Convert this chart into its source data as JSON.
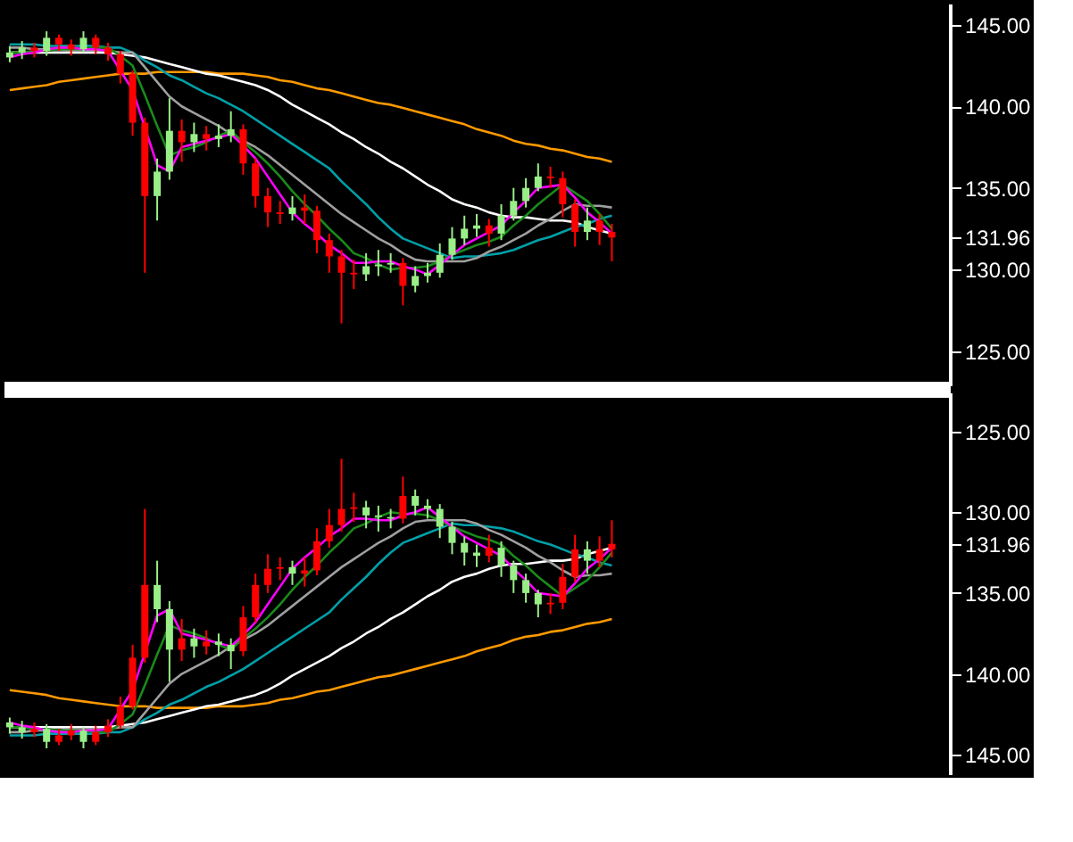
{
  "chart_data": [
    {
      "type": "candlestick",
      "categories": [
        null,
        null,
        null,
        null,
        null,
        null,
        null,
        null,
        null,
        null,
        null,
        null,
        null,
        null,
        null,
        null,
        null,
        null,
        null,
        null,
        null,
        null,
        null,
        null,
        null,
        null,
        null,
        null,
        null,
        null,
        null,
        null,
        null,
        null,
        null,
        null,
        null,
        null,
        null,
        null,
        null,
        null,
        null,
        null,
        null,
        null,
        null,
        null,
        null,
        null
      ],
      "ohlc": [
        [
          143.0,
          143.7,
          142.7,
          143.3
        ],
        [
          143.3,
          144.0,
          142.9,
          143.6
        ],
        [
          143.6,
          143.9,
          143.0,
          143.4
        ],
        [
          143.4,
          144.6,
          143.1,
          144.2
        ],
        [
          144.2,
          144.4,
          143.4,
          143.8
        ],
        [
          143.8,
          144.1,
          143.1,
          143.5
        ],
        [
          143.5,
          144.6,
          143.3,
          144.2
        ],
        [
          144.2,
          144.4,
          143.2,
          143.6
        ],
        [
          143.6,
          143.9,
          142.8,
          143.2
        ],
        [
          143.2,
          143.4,
          141.4,
          142.0
        ],
        [
          142.0,
          142.2,
          138.2,
          139.0
        ],
        [
          139.0,
          139.3,
          129.8,
          134.5
        ],
        [
          134.5,
          136.8,
          133.0,
          136.0
        ],
        [
          136.0,
          140.5,
          135.5,
          138.5
        ],
        [
          138.5,
          139.2,
          136.6,
          137.8
        ],
        [
          137.8,
          139.0,
          137.2,
          138.3
        ],
        [
          138.3,
          138.8,
          137.3,
          138.0
        ],
        [
          138.0,
          138.9,
          137.5,
          138.2
        ],
        [
          138.2,
          139.7,
          137.8,
          138.6
        ],
        [
          138.6,
          138.9,
          135.8,
          136.5
        ],
        [
          136.5,
          136.8,
          133.8,
          134.5
        ],
        [
          134.5,
          135.0,
          132.6,
          133.5
        ],
        [
          133.5,
          134.2,
          132.8,
          133.4
        ],
        [
          133.4,
          134.5,
          133.0,
          133.8
        ],
        [
          133.8,
          134.6,
          132.8,
          133.6
        ],
        [
          133.6,
          133.9,
          131.0,
          131.8
        ],
        [
          131.8,
          132.2,
          129.8,
          130.8
        ],
        [
          130.8,
          131.2,
          126.7,
          129.8
        ],
        [
          129.8,
          130.6,
          128.8,
          129.7
        ],
        [
          129.7,
          131.0,
          129.3,
          130.2
        ],
        [
          130.2,
          131.2,
          129.6,
          130.3
        ],
        [
          130.3,
          131.0,
          129.8,
          130.4
        ],
        [
          130.4,
          130.7,
          127.8,
          129.0
        ],
        [
          129.0,
          130.2,
          128.6,
          129.6
        ],
        [
          129.6,
          130.4,
          129.2,
          129.8
        ],
        [
          129.8,
          131.6,
          129.5,
          130.9
        ],
        [
          130.9,
          132.6,
          130.6,
          131.9
        ],
        [
          131.9,
          133.3,
          131.5,
          132.5
        ],
        [
          132.5,
          133.4,
          132.0,
          132.7
        ],
        [
          132.7,
          133.1,
          131.4,
          132.2
        ],
        [
          132.2,
          134.0,
          131.8,
          133.3
        ],
        [
          133.3,
          135.0,
          133.0,
          134.2
        ],
        [
          134.2,
          135.6,
          133.8,
          135.0
        ],
        [
          135.0,
          136.5,
          134.8,
          135.7
        ],
        [
          135.7,
          136.3,
          135.0,
          135.6
        ],
        [
          135.6,
          136.0,
          133.2,
          134.0
        ],
        [
          134.0,
          134.3,
          131.4,
          132.3
        ],
        [
          132.3,
          133.8,
          131.8,
          133.0
        ],
        [
          133.0,
          133.4,
          131.5,
          132.3
        ],
        [
          132.3,
          132.8,
          130.5,
          131.96
        ]
      ],
      "colors": [
        "#99ee88",
        "#99ee88",
        "#ff0000",
        "#99ee88",
        "#ff0000",
        "#ff0000",
        "#99ee88",
        "#ff0000",
        "#ff0000",
        "#ff0000",
        "#ff0000",
        "#ff0000",
        "#99ee88",
        "#99ee88",
        "#ff0000",
        "#99ee88",
        "#ff0000",
        "#99ee88",
        "#99ee88",
        "#ff0000",
        "#ff0000",
        "#ff0000",
        "#ff0000",
        "#99ee88",
        "#ff0000",
        "#ff0000",
        "#ff0000",
        "#ff0000",
        "#ff0000",
        "#99ee88",
        "#99ee88",
        "#99ee88",
        "#ff0000",
        "#99ee88",
        "#99ee88",
        "#99ee88",
        "#99ee88",
        "#99ee88",
        "#99ee88",
        "#ff0000",
        "#99ee88",
        "#99ee88",
        "#99ee88",
        "#99ee88",
        "#ff0000",
        "#ff0000",
        "#ff0000",
        "#99ee88",
        "#ff0000",
        "#ff0000"
      ],
      "series": [
        {
          "type": "line",
          "color": "#ff9900",
          "values": [
            141.0,
            141.1,
            141.2,
            141.3,
            141.5,
            141.6,
            141.7,
            141.8,
            141.9,
            142.0,
            142.0,
            142.0,
            142.1,
            142.1,
            142.1,
            142.1,
            142.1,
            142.0,
            142.0,
            142.0,
            141.9,
            141.8,
            141.6,
            141.5,
            141.3,
            141.1,
            141.0,
            140.8,
            140.6,
            140.4,
            140.2,
            140.1,
            139.9,
            139.7,
            139.5,
            139.3,
            139.1,
            138.9,
            138.6,
            138.4,
            138.2,
            137.9,
            137.7,
            137.6,
            137.4,
            137.3,
            137.1,
            136.9,
            136.8,
            136.6
          ]
        },
        {
          "type": "line",
          "color": "#ffffff",
          "values": [
            143.3,
            143.3,
            143.3,
            143.3,
            143.3,
            143.3,
            143.3,
            143.3,
            143.3,
            143.2,
            143.1,
            143.0,
            142.8,
            142.6,
            142.4,
            142.2,
            142.0,
            141.9,
            141.7,
            141.5,
            141.3,
            141.0,
            140.6,
            140.1,
            139.7,
            139.3,
            138.9,
            138.4,
            138.0,
            137.5,
            137.1,
            136.6,
            136.2,
            135.7,
            135.2,
            134.8,
            134.3,
            134.0,
            133.8,
            133.5,
            133.3,
            133.2,
            133.2,
            133.1,
            133.0,
            133.0,
            132.9,
            132.6,
            132.4,
            132.2
          ]
        },
        {
          "type": "line",
          "color": "#00a0a8",
          "values": [
            143.8,
            143.8,
            143.8,
            143.7,
            143.7,
            143.7,
            143.7,
            143.7,
            143.6,
            143.6,
            143.3,
            142.8,
            142.4,
            141.9,
            141.6,
            141.2,
            140.8,
            140.5,
            140.1,
            139.7,
            139.2,
            138.7,
            138.2,
            137.7,
            137.2,
            136.7,
            136.2,
            135.4,
            134.7,
            134.0,
            133.2,
            132.5,
            131.9,
            131.6,
            131.3,
            131.0,
            130.7,
            130.8,
            130.8,
            130.9,
            131.0,
            131.2,
            131.5,
            131.8,
            132.0,
            132.3,
            132.6,
            132.8,
            133.1,
            133.3
          ]
        },
        {
          "type": "line",
          "color": "#a0a0a0",
          "values": [
            143.6,
            143.6,
            143.5,
            143.5,
            143.5,
            143.4,
            143.4,
            143.4,
            143.4,
            143.3,
            143.3,
            142.4,
            141.5,
            140.6,
            140.0,
            139.6,
            139.2,
            138.8,
            138.3,
            137.9,
            137.5,
            137.0,
            136.4,
            135.8,
            135.2,
            134.6,
            134.0,
            133.4,
            132.9,
            132.4,
            131.9,
            131.5,
            131.0,
            130.6,
            130.5,
            130.5,
            130.5,
            130.5,
            130.7,
            131.1,
            131.4,
            131.8,
            132.2,
            132.7,
            133.1,
            133.6,
            134.0,
            133.9,
            133.9,
            133.8
          ]
        },
        {
          "type": "line",
          "color": "#1a8a1a",
          "values": [
            143.3,
            143.3,
            143.4,
            143.4,
            143.5,
            143.5,
            143.5,
            143.6,
            143.6,
            143.1,
            142.5,
            140.7,
            138.8,
            137.0,
            137.3,
            137.5,
            137.8,
            138.2,
            138.5,
            137.8,
            137.2,
            136.5,
            135.7,
            134.8,
            134.0,
            133.3,
            132.5,
            131.8,
            131.0,
            130.7,
            130.3,
            130.0,
            130.1,
            130.1,
            130.2,
            130.5,
            130.9,
            131.2,
            131.5,
            131.7,
            132.0,
            132.7,
            133.3,
            134.0,
            134.6,
            135.2,
            134.7,
            134.2,
            133.4,
            132.5
          ]
        },
        {
          "type": "line",
          "color": "#ff00ff",
          "values": [
            143.0,
            143.2,
            143.3,
            143.5,
            143.6,
            143.6,
            143.5,
            143.5,
            143.4,
            142.2,
            141.0,
            138.7,
            136.4,
            136.0,
            137.5,
            137.7,
            137.9,
            138.1,
            138.3,
            137.6,
            136.8,
            135.7,
            134.6,
            133.5,
            132.8,
            132.2,
            131.5,
            131.0,
            130.4,
            130.4,
            130.5,
            130.5,
            130.2,
            130.0,
            129.7,
            130.3,
            130.9,
            131.5,
            131.9,
            132.3,
            132.7,
            133.5,
            134.2,
            135.0,
            135.1,
            135.2,
            134.4,
            133.5,
            132.9,
            132.2
          ]
        }
      ],
      "ylim": [
        122.9,
        146.3
      ],
      "yticks": [
        {
          "value": 125,
          "label": "125.00"
        },
        {
          "value": 130,
          "label": "130.00"
        },
        {
          "value": 131.96,
          "label": "131.96"
        },
        {
          "value": 135,
          "label": "135.00"
        },
        {
          "value": 140,
          "label": "140.00"
        },
        {
          "value": 145,
          "label": "145.00"
        }
      ],
      "tick_labels": "y",
      "grid": false
    },
    {
      "type": "candlestick",
      "categories": [
        null,
        null,
        null,
        null,
        null,
        null,
        null,
        null,
        null,
        null,
        null,
        null,
        null,
        null,
        null,
        null,
        null,
        null,
        null,
        null,
        null,
        null,
        null,
        null,
        null,
        null,
        null,
        null,
        null,
        null,
        null,
        null,
        null,
        null,
        null,
        null,
        null,
        null,
        null,
        null,
        null,
        null,
        null,
        null,
        null,
        null,
        null,
        null,
        null,
        null
      ],
      "ohlc": [
        [
          143.0,
          143.7,
          142.7,
          143.3
        ],
        [
          143.3,
          144.0,
          142.9,
          143.6
        ],
        [
          143.6,
          143.9,
          143.0,
          143.4
        ],
        [
          143.4,
          144.6,
          143.1,
          144.2
        ],
        [
          144.2,
          144.4,
          143.4,
          143.8
        ],
        [
          143.8,
          144.1,
          143.1,
          143.5
        ],
        [
          143.5,
          144.6,
          143.3,
          144.2
        ],
        [
          144.2,
          144.4,
          143.2,
          143.6
        ],
        [
          143.6,
          143.9,
          142.8,
          143.2
        ],
        [
          143.2,
          143.4,
          141.4,
          142.0
        ],
        [
          142.0,
          142.2,
          138.2,
          139.0
        ],
        [
          139.0,
          139.3,
          129.8,
          134.5
        ],
        [
          134.5,
          136.8,
          133.0,
          136.0
        ],
        [
          136.0,
          140.5,
          135.5,
          138.5
        ],
        [
          138.5,
          139.2,
          136.6,
          137.8
        ],
        [
          137.8,
          139.0,
          137.2,
          138.3
        ],
        [
          138.3,
          138.8,
          137.3,
          138.0
        ],
        [
          138.0,
          138.9,
          137.5,
          138.2
        ],
        [
          138.2,
          139.7,
          137.8,
          138.6
        ],
        [
          138.6,
          138.9,
          135.8,
          136.5
        ],
        [
          136.5,
          136.8,
          133.8,
          134.5
        ],
        [
          134.5,
          135.0,
          132.6,
          133.5
        ],
        [
          133.5,
          134.2,
          132.8,
          133.4
        ],
        [
          133.4,
          134.5,
          133.0,
          133.8
        ],
        [
          133.8,
          134.6,
          132.8,
          133.6
        ],
        [
          133.6,
          133.9,
          131.0,
          131.8
        ],
        [
          131.8,
          132.2,
          129.8,
          130.8
        ],
        [
          130.8,
          131.2,
          126.7,
          129.8
        ],
        [
          129.8,
          130.6,
          128.8,
          129.7
        ],
        [
          129.7,
          131.0,
          129.3,
          130.2
        ],
        [
          130.2,
          131.2,
          129.6,
          130.3
        ],
        [
          130.3,
          131.0,
          129.8,
          130.4
        ],
        [
          130.4,
          130.7,
          127.8,
          129.0
        ],
        [
          129.0,
          130.2,
          128.6,
          129.6
        ],
        [
          129.6,
          130.4,
          129.2,
          129.8
        ],
        [
          129.8,
          131.6,
          129.5,
          130.9
        ],
        [
          130.9,
          132.6,
          130.6,
          131.9
        ],
        [
          131.9,
          133.3,
          131.5,
          132.5
        ],
        [
          132.5,
          133.4,
          132.0,
          132.7
        ],
        [
          132.7,
          133.1,
          131.4,
          132.2
        ],
        [
          132.2,
          134.0,
          131.8,
          133.3
        ],
        [
          133.3,
          135.0,
          133.0,
          134.2
        ],
        [
          134.2,
          135.6,
          133.8,
          135.0
        ],
        [
          135.0,
          136.5,
          134.8,
          135.7
        ],
        [
          135.7,
          136.3,
          135.0,
          135.6
        ],
        [
          135.6,
          136.0,
          133.2,
          134.0
        ],
        [
          134.0,
          134.3,
          131.4,
          132.3
        ],
        [
          132.3,
          133.8,
          131.8,
          133.0
        ],
        [
          133.0,
          133.4,
          131.5,
          132.3
        ],
        [
          132.3,
          132.8,
          130.5,
          131.96
        ]
      ],
      "colors": [
        "#99ee88",
        "#99ee88",
        "#ff0000",
        "#99ee88",
        "#ff0000",
        "#ff0000",
        "#99ee88",
        "#ff0000",
        "#ff0000",
        "#ff0000",
        "#ff0000",
        "#ff0000",
        "#99ee88",
        "#99ee88",
        "#ff0000",
        "#99ee88",
        "#ff0000",
        "#99ee88",
        "#99ee88",
        "#ff0000",
        "#ff0000",
        "#ff0000",
        "#ff0000",
        "#99ee88",
        "#ff0000",
        "#ff0000",
        "#ff0000",
        "#ff0000",
        "#ff0000",
        "#99ee88",
        "#99ee88",
        "#99ee88",
        "#ff0000",
        "#99ee88",
        "#99ee88",
        "#99ee88",
        "#99ee88",
        "#99ee88",
        "#99ee88",
        "#ff0000",
        "#99ee88",
        "#99ee88",
        "#99ee88",
        "#99ee88",
        "#ff0000",
        "#ff0000",
        "#ff0000",
        "#99ee88",
        "#ff0000",
        "#ff0000"
      ],
      "series": [
        {
          "type": "line",
          "color": "#ff9900",
          "values": [
            141.0,
            141.1,
            141.2,
            141.3,
            141.5,
            141.6,
            141.7,
            141.8,
            141.9,
            142.0,
            142.0,
            142.0,
            142.1,
            142.1,
            142.1,
            142.1,
            142.1,
            142.0,
            142.0,
            142.0,
            141.9,
            141.8,
            141.6,
            141.5,
            141.3,
            141.1,
            141.0,
            140.8,
            140.6,
            140.4,
            140.2,
            140.1,
            139.9,
            139.7,
            139.5,
            139.3,
            139.1,
            138.9,
            138.6,
            138.4,
            138.2,
            137.9,
            137.7,
            137.6,
            137.4,
            137.3,
            137.1,
            136.9,
            136.8,
            136.6
          ]
        },
        {
          "type": "line",
          "color": "#ffffff",
          "values": [
            143.3,
            143.3,
            143.3,
            143.3,
            143.3,
            143.3,
            143.3,
            143.3,
            143.3,
            143.2,
            143.1,
            143.0,
            142.8,
            142.6,
            142.4,
            142.2,
            142.0,
            141.9,
            141.7,
            141.5,
            141.3,
            141.0,
            140.6,
            140.1,
            139.7,
            139.3,
            138.9,
            138.4,
            138.0,
            137.5,
            137.1,
            136.6,
            136.2,
            135.7,
            135.2,
            134.8,
            134.3,
            134.0,
            133.8,
            133.5,
            133.3,
            133.2,
            133.2,
            133.1,
            133.0,
            133.0,
            132.9,
            132.6,
            132.4,
            132.2
          ]
        },
        {
          "type": "line",
          "color": "#00a0a8",
          "values": [
            143.8,
            143.8,
            143.8,
            143.7,
            143.7,
            143.7,
            143.7,
            143.7,
            143.6,
            143.6,
            143.3,
            142.8,
            142.4,
            141.9,
            141.6,
            141.2,
            140.8,
            140.5,
            140.1,
            139.7,
            139.2,
            138.7,
            138.2,
            137.7,
            137.2,
            136.7,
            136.2,
            135.4,
            134.7,
            134.0,
            133.2,
            132.5,
            131.9,
            131.6,
            131.3,
            131.0,
            130.7,
            130.8,
            130.8,
            130.9,
            131.0,
            131.2,
            131.5,
            131.8,
            132.0,
            132.3,
            132.6,
            132.8,
            133.1,
            133.3
          ]
        },
        {
          "type": "line",
          "color": "#a0a0a0",
          "values": [
            143.6,
            143.6,
            143.5,
            143.5,
            143.5,
            143.4,
            143.4,
            143.4,
            143.4,
            143.3,
            143.3,
            142.4,
            141.5,
            140.6,
            140.0,
            139.6,
            139.2,
            138.8,
            138.3,
            137.9,
            137.5,
            137.0,
            136.4,
            135.8,
            135.2,
            134.6,
            134.0,
            133.4,
            132.9,
            132.4,
            131.9,
            131.5,
            131.0,
            130.6,
            130.5,
            130.5,
            130.5,
            130.5,
            130.7,
            131.1,
            131.4,
            131.8,
            132.2,
            132.7,
            133.1,
            133.6,
            134.0,
            133.9,
            133.9,
            133.8
          ]
        },
        {
          "type": "line",
          "color": "#1a8a1a",
          "values": [
            143.3,
            143.3,
            143.4,
            143.4,
            143.5,
            143.5,
            143.5,
            143.6,
            143.6,
            143.1,
            142.5,
            140.7,
            138.8,
            137.0,
            137.3,
            137.5,
            137.8,
            138.2,
            138.5,
            137.8,
            137.2,
            136.5,
            135.7,
            134.8,
            134.0,
            133.3,
            132.5,
            131.8,
            131.0,
            130.7,
            130.3,
            130.0,
            130.1,
            130.1,
            130.2,
            130.5,
            130.9,
            131.2,
            131.5,
            131.7,
            132.0,
            132.7,
            133.3,
            134.0,
            134.6,
            135.2,
            134.7,
            134.2,
            133.4,
            132.5
          ]
        },
        {
          "type": "line",
          "color": "#ff00ff",
          "values": [
            143.0,
            143.2,
            143.3,
            143.5,
            143.6,
            143.6,
            143.5,
            143.5,
            143.4,
            142.2,
            141.0,
            138.7,
            136.4,
            136.0,
            137.5,
            137.7,
            137.9,
            138.1,
            138.3,
            137.6,
            136.8,
            135.7,
            134.6,
            133.5,
            132.8,
            132.2,
            131.5,
            131.0,
            130.4,
            130.4,
            130.5,
            130.5,
            130.2,
            130.0,
            129.7,
            130.3,
            130.9,
            131.5,
            131.9,
            132.3,
            132.7,
            133.5,
            134.2,
            135.0,
            135.1,
            135.2,
            134.4,
            133.5,
            132.9,
            132.2
          ]
        }
      ],
      "ylim": [
        146.2,
        122.6
      ],
      "yticks": [
        {
          "value": 125,
          "label": "125.00"
        },
        {
          "value": 130,
          "label": "130.00"
        },
        {
          "value": 131.96,
          "label": "131.96"
        },
        {
          "value": 135,
          "label": "135.00"
        },
        {
          "value": 140,
          "label": "140.00"
        },
        {
          "value": 145,
          "label": "145.00"
        }
      ],
      "tick_labels": "y",
      "grid": false
    }
  ]
}
